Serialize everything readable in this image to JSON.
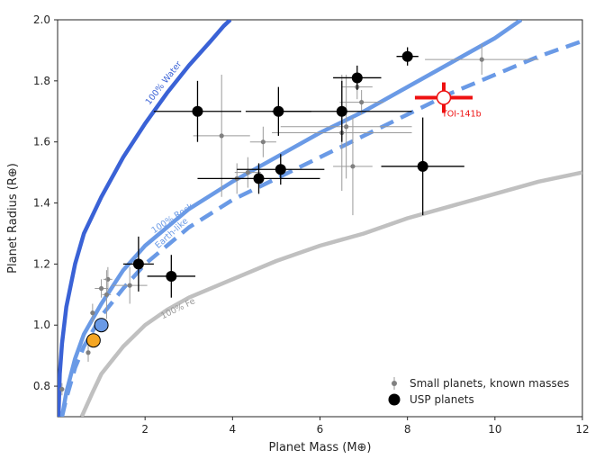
{
  "chart_data": {
    "type": "scatter",
    "title": "",
    "xlabel": "Planet Mass (M⊕)",
    "ylabel": "Planet Radius (R⊕)",
    "xlim": [
      0.0,
      12.0
    ],
    "ylim": [
      0.7,
      2.0
    ],
    "x_ticks": [
      2,
      4,
      6,
      8,
      10,
      12
    ],
    "y_ticks": [
      0.8,
      1.0,
      1.2,
      1.4,
      1.6,
      1.8,
      2.0
    ],
    "x_tick_labels": [
      "2",
      "4",
      "6",
      "8",
      "10",
      "12"
    ],
    "y_tick_labels": [
      "0.8",
      "1.0",
      "1.2",
      "1.4",
      "1.6",
      "1.8",
      "2.0"
    ],
    "grid": false,
    "legend_position": "bottom-right",
    "legend": [
      {
        "label": "Small planets, known masses",
        "color": "#808080",
        "marker": "small-circle-errorbar"
      },
      {
        "label": "USP planets",
        "color": "#000000",
        "marker": "large-circle-errorbar"
      }
    ],
    "curves": [
      {
        "label": "100% Water",
        "color": "#3a62d6",
        "style": "solid",
        "points": [
          [
            0.02,
            0.7
          ],
          [
            0.05,
            0.84
          ],
          [
            0.1,
            0.94
          ],
          [
            0.2,
            1.06
          ],
          [
            0.4,
            1.2
          ],
          [
            0.6,
            1.3
          ],
          [
            1.0,
            1.42
          ],
          [
            1.5,
            1.55
          ],
          [
            2.0,
            1.66
          ],
          [
            2.5,
            1.76
          ],
          [
            3.0,
            1.85
          ],
          [
            3.5,
            1.93
          ],
          [
            3.8,
            1.98
          ],
          [
            3.95,
            2.0
          ]
        ]
      },
      {
        "label": "100% Rock",
        "color": "#6a9ae6",
        "style": "solid",
        "points": [
          [
            0.1,
            0.7
          ],
          [
            0.2,
            0.78
          ],
          [
            0.4,
            0.89
          ],
          [
            0.6,
            0.97
          ],
          [
            0.8,
            1.02
          ],
          [
            1.0,
            1.07
          ],
          [
            1.5,
            1.18
          ],
          [
            2.0,
            1.26
          ],
          [
            3.0,
            1.38
          ],
          [
            4.0,
            1.47
          ],
          [
            5.0,
            1.55
          ],
          [
            6.0,
            1.63
          ],
          [
            7.0,
            1.7
          ],
          [
            8.0,
            1.78
          ],
          [
            9.0,
            1.86
          ],
          [
            10.0,
            1.94
          ],
          [
            10.6,
            2.0
          ]
        ]
      },
      {
        "label": "Earth-like",
        "color": "#6a9ae6",
        "style": "dashed",
        "points": [
          [
            0.1,
            0.7
          ],
          [
            0.2,
            0.76
          ],
          [
            0.4,
            0.86
          ],
          [
            0.6,
            0.93
          ],
          [
            0.8,
            0.98
          ],
          [
            1.0,
            1.03
          ],
          [
            1.5,
            1.12
          ],
          [
            2.0,
            1.2
          ],
          [
            3.0,
            1.32
          ],
          [
            4.0,
            1.41
          ],
          [
            5.0,
            1.48
          ],
          [
            6.0,
            1.55
          ],
          [
            7.0,
            1.62
          ],
          [
            8.0,
            1.69
          ],
          [
            9.0,
            1.76
          ],
          [
            10.0,
            1.82
          ],
          [
            11.0,
            1.88
          ],
          [
            12.0,
            1.93
          ]
        ]
      },
      {
        "label": "100% Fe",
        "color": "#c0c0c0",
        "style": "solid",
        "points": [
          [
            0.55,
            0.7
          ],
          [
            0.8,
            0.78
          ],
          [
            1.0,
            0.84
          ],
          [
            1.5,
            0.93
          ],
          [
            2.0,
            1.0
          ],
          [
            2.5,
            1.05
          ],
          [
            3.0,
            1.09
          ],
          [
            4.0,
            1.15
          ],
          [
            5.0,
            1.21
          ],
          [
            6.0,
            1.26
          ],
          [
            7.0,
            1.3
          ],
          [
            8.0,
            1.35
          ],
          [
            9.0,
            1.39
          ],
          [
            10.0,
            1.43
          ],
          [
            11.0,
            1.47
          ],
          [
            12.0,
            1.5
          ]
        ]
      }
    ],
    "curve_labels": [
      {
        "text": "100% Water",
        "x": 2.1,
        "y": 1.72,
        "angle": -52,
        "color": "#3a62d6"
      },
      {
        "text": "100% Rock",
        "x": 2.2,
        "y": 1.3,
        "angle": -33,
        "color": "#6a9ae6"
      },
      {
        "text": "Earth-like",
        "x": 2.3,
        "y": 1.25,
        "angle": -42,
        "color": "#6a9ae6"
      },
      {
        "text": "100% Fe",
        "x": 2.4,
        "y": 1.02,
        "angle": -26,
        "color": "#9a9a9a"
      }
    ],
    "series": [
      {
        "name": "Small planets, known masses",
        "color": "#808080",
        "points": [
          {
            "x": 0.1,
            "y": 0.79,
            "xerr": 0.05,
            "yerr": 0.02
          },
          {
            "x": 0.7,
            "y": 0.91,
            "xerr": 0.05,
            "yerr": 0.03
          },
          {
            "x": 0.8,
            "y": 1.04,
            "xerr": 0.05,
            "yerr": 0.03
          },
          {
            "x": 1.0,
            "y": 1.12,
            "xerr": 0.15,
            "yerr": 0.03
          },
          {
            "x": 1.15,
            "y": 1.15,
            "xerr": 0.1,
            "yerr": 0.04
          },
          {
            "x": 1.12,
            "y": 1.1,
            "xerr": 0.1,
            "yerr": 0.08
          },
          {
            "x": 1.65,
            "y": 1.13,
            "xerr": 0.4,
            "yerr": 0.06
          },
          {
            "x": 3.75,
            "y": 1.62,
            "xerr": 0.65,
            "yerr": 0.2
          },
          {
            "x": 4.1,
            "y": 1.48,
            "xerr": 0.4,
            "yerr": 0.05
          },
          {
            "x": 4.35,
            "y": 1.5,
            "xerr": 0.3,
            "yerr": 0.05
          },
          {
            "x": 4.7,
            "y": 1.6,
            "xerr": 0.3,
            "yerr": 0.05
          },
          {
            "x": 6.5,
            "y": 1.63,
            "xerr": 1.6,
            "yerr": 0.19
          },
          {
            "x": 6.6,
            "y": 1.65,
            "xerr": 1.5,
            "yerr": 0.17
          },
          {
            "x": 6.75,
            "y": 1.52,
            "xerr": 0.45,
            "yerr": 0.16
          },
          {
            "x": 6.95,
            "y": 1.73,
            "xerr": 0.5,
            "yerr": 0.04
          },
          {
            "x": 6.85,
            "y": 1.78,
            "xerr": 0.35,
            "yerr": 0.04
          },
          {
            "x": 9.7,
            "y": 1.87,
            "xerr": 1.3,
            "yerr": 0.05
          }
        ]
      },
      {
        "name": "USP planets",
        "color": "#000000",
        "points": [
          {
            "x": 1.85,
            "y": 1.2,
            "xerr": 0.35,
            "yerr": 0.09
          },
          {
            "x": 2.6,
            "y": 1.16,
            "xerr": 0.55,
            "yerr": 0.07
          },
          {
            "x": 3.2,
            "y": 1.7,
            "xerr": 1.0,
            "yerr": 0.1
          },
          {
            "x": 4.6,
            "y": 1.48,
            "xerr": 1.4,
            "yerr": 0.05
          },
          {
            "x": 5.05,
            "y": 1.7,
            "xerr": 0.75,
            "yerr": 0.08
          },
          {
            "x": 5.1,
            "y": 1.51,
            "xerr": 1.0,
            "yerr": 0.05
          },
          {
            "x": 6.5,
            "y": 1.7,
            "xerr": 1.6,
            "yerr": 0.1
          },
          {
            "x": 6.85,
            "y": 1.81,
            "xerr": 0.55,
            "yerr": 0.04
          },
          {
            "x": 8.0,
            "y": 1.88,
            "xerr": 0.25,
            "yerr": 0.03
          },
          {
            "x": 8.35,
            "y": 1.52,
            "xerr": 0.95,
            "yerr": 0.16
          }
        ]
      }
    ],
    "reference_points": [
      {
        "x": 0.82,
        "y": 0.95,
        "color": "#f5a623",
        "edge": "#000000"
      },
      {
        "x": 1.0,
        "y": 1.0,
        "color": "#6a9ae6",
        "edge": "#000000"
      }
    ],
    "highlight": {
      "label": "TOI-141b",
      "x": 8.83,
      "y": 1.745,
      "xerr": 0.66,
      "yerr": 0.05,
      "color": "#ee1111"
    }
  }
}
